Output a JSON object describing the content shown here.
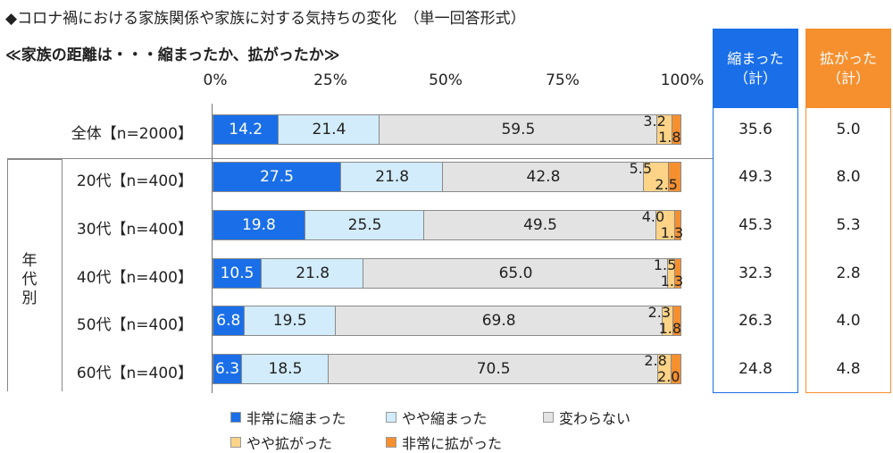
{
  "title": "◆コロナ禍における家族関係や家族に対する気持ちの変化　（単一回答形式）",
  "subtitle": "≪家族の距離は・・・縮まったか、拡がったか≫",
  "axis_ticks": [
    "0%",
    "25%",
    "50%",
    "75%",
    "100%"
  ],
  "group_label": "年代別",
  "colors": {
    "非常に縮まった": "#1a6fe8",
    "やや縮まった": "#d2ecfb",
    "変わらない": "#e3e3e3",
    "やや拡がった": "#fdd387",
    "非常に拡がった": "#f6902f"
  },
  "columns": [
    {
      "head1": "縮まった",
      "head2": "（計）",
      "color": "#1a6fe8"
    },
    {
      "head1": "拡がった",
      "head2": "（計）",
      "color": "#f6902f"
    }
  ],
  "chart_data": {
    "type": "bar",
    "stacked": true,
    "orientation": "horizontal",
    "title": "◆コロナ禍における家族関係や家族に対する気持ちの変化　（単一回答形式）",
    "subtitle": "≪家族の距離は・・・縮まったか、拡がったか≫",
    "xlim": [
      0,
      100
    ],
    "legend_position": "bottom",
    "categories": [
      "全体【n=2000】",
      "20代【n=400】",
      "30代【n=400】",
      "40代【n=400】",
      "50代【n=400】",
      "60代【n=400】"
    ],
    "series": [
      {
        "name": "非常に縮まった",
        "values": [
          14.2,
          27.5,
          19.8,
          10.5,
          6.8,
          6.3
        ]
      },
      {
        "name": "やや縮まった",
        "values": [
          21.4,
          21.8,
          25.5,
          21.8,
          19.5,
          18.5
        ]
      },
      {
        "name": "変わらない",
        "values": [
          59.5,
          42.8,
          49.5,
          65.0,
          69.8,
          70.5
        ]
      },
      {
        "name": "やや拡がった",
        "values": [
          3.2,
          5.5,
          4.0,
          1.5,
          2.3,
          2.8
        ]
      },
      {
        "name": "非常に拡がった",
        "values": [
          1.8,
          2.5,
          1.3,
          1.3,
          1.8,
          2.0
        ]
      }
    ],
    "totals": {
      "縮まった（計）": [
        "35.6",
        "49.3",
        "45.3",
        "32.3",
        "26.3",
        "24.8"
      ],
      "拡がった（計）": [
        "5.0",
        "8.0",
        "5.3",
        "2.8",
        "4.0",
        "4.8"
      ]
    }
  }
}
